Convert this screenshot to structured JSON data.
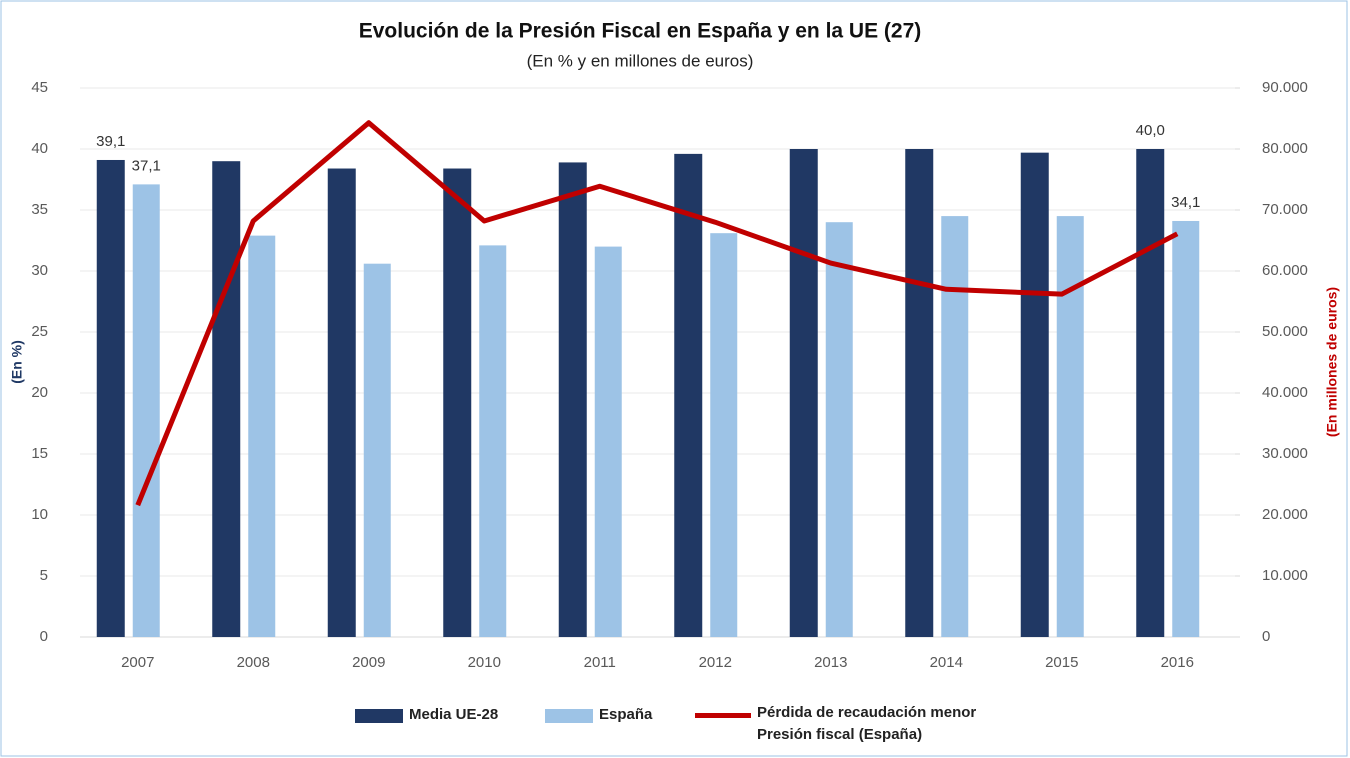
{
  "chart_data": {
    "type": "bar",
    "title": "Evolución de la Presión Fiscal en España y en la UE (27)",
    "subtitle": "(En % y en millones de euros)",
    "ylabel": "(En %)",
    "y2label": "(En millones de euros)",
    "categories": [
      "2007",
      "2008",
      "2009",
      "2010",
      "2011",
      "2012",
      "2013",
      "2014",
      "2015",
      "2016"
    ],
    "series": [
      {
        "name": "Media UE-28",
        "color": "#203864",
        "type": "bar",
        "values": [
          39.1,
          39.0,
          38.4,
          38.4,
          38.9,
          39.6,
          40.0,
          40.0,
          39.7,
          40.0
        ],
        "value_labels": [
          "39,1",
          null,
          null,
          null,
          null,
          null,
          null,
          null,
          null,
          "40,0"
        ]
      },
      {
        "name": "España",
        "color": "#9dc3e6",
        "type": "bar",
        "values": [
          37.1,
          32.9,
          30.6,
          32.1,
          32.0,
          33.1,
          34.0,
          34.5,
          34.5,
          34.1
        ],
        "value_labels": [
          "37,1",
          null,
          null,
          null,
          null,
          null,
          null,
          null,
          null,
          "34,1"
        ]
      },
      {
        "name": "Pérdida de recaudación menor Presión fiscal (España)",
        "color": "#c00000",
        "type": "line",
        "axis": "y2",
        "values": [
          21600,
          68200,
          84300,
          68200,
          73900,
          68000,
          61300,
          57000,
          56200,
          66100
        ]
      }
    ],
    "ylim": [
      0,
      45
    ],
    "yticks": [
      0,
      5,
      10,
      15,
      20,
      25,
      30,
      35,
      40,
      45
    ],
    "y2lim": [
      0,
      90000
    ],
    "y2ticks": [
      0,
      {
        "value": 10000,
        "label": "10.000"
      },
      {
        "value": 20000,
        "label": "20.000"
      },
      {
        "value": 30000,
        "label": "30.000"
      },
      {
        "value": 40000,
        "label": "40.000"
      },
      {
        "value": 50000,
        "label": "50.000"
      },
      {
        "value": 60000,
        "label": "60.000"
      },
      {
        "value": 70000,
        "label": "70.000"
      },
      {
        "value": 80000,
        "label": "80.000"
      },
      {
        "value": 90000,
        "label": "90.000"
      }
    ],
    "grid": true
  }
}
